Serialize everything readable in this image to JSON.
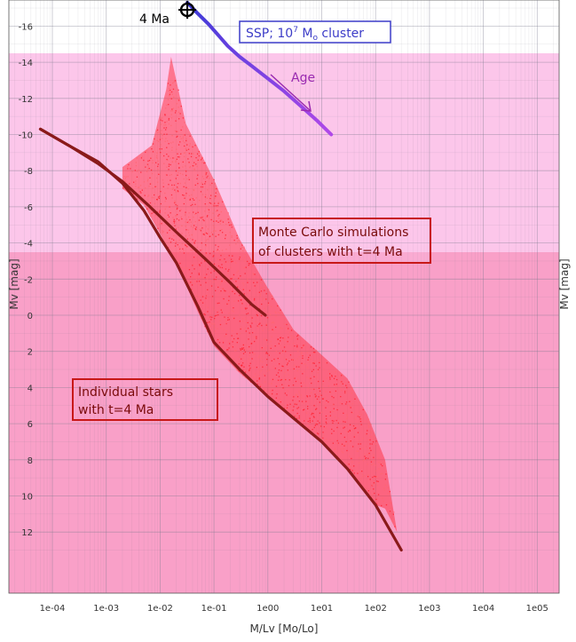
{
  "chart_data": {
    "type": "scatter",
    "x_scale": "log",
    "y_reversed": true,
    "xlabel": "M/Lv [Mo/Lo]",
    "ylabel_left": "Mv [mag]",
    "ylabel_right": "Mv [mag]",
    "xlim": [
      5e-05,
      300000.0
    ],
    "ylim": [
      13.5,
      -17
    ],
    "x_ticks": [
      "1e-04",
      "1e-03",
      "1e-02",
      "1e-01",
      "1e00",
      "1e01",
      "1e02",
      "1e03",
      "1e04",
      "1e05"
    ],
    "y_ticks": [
      "-16",
      "-14",
      "-12",
      "-10",
      "-8",
      "-6",
      "-4",
      "-2",
      "0",
      "2",
      "4",
      "6",
      "8",
      "10",
      "12"
    ],
    "grid": true,
    "annotations": {
      "ssp_point_label": "4 Ma",
      "ssp_box_prefix": "SSP; 10",
      "ssp_box_sup": "7",
      "ssp_box_mid": " M",
      "ssp_box_sub": "o",
      "ssp_box_suffix": " cluster",
      "age_label": "Age",
      "mc_label_line1": "Monte Carlo simulations",
      "mc_label_line2": "of clusters with t=4 Ma",
      "stars_label_line1": "Individual stars",
      "stars_label_line2": "with t=4 Ma"
    },
    "colors": {
      "background_upper": "#fcc6ea",
      "background_lower": "#f9a0c8",
      "cloud": "#ff3344",
      "stars": "#8a1a1a",
      "ssp_track_early": "#3a3ad6",
      "ssp_track_late": "#b048e8",
      "annotation_box": "#c81818",
      "ssp_box": "#3c3cc8",
      "age_arrow": "#9a2ab0"
    },
    "ssp_track": {
      "x": [
        0.032,
        0.05,
        0.08,
        0.12,
        0.18,
        0.3,
        0.5,
        1.0,
        2.0,
        4.0,
        8.0,
        15.0
      ],
      "y": [
        -17.3,
        -16.7,
        -16.1,
        -15.5,
        -14.9,
        -14.3,
        -13.8,
        -13.1,
        -12.4,
        -11.6,
        -10.8,
        -10.0
      ]
    },
    "stars_upper_branch": {
      "x": [
        6e-05,
        0.0002,
        0.0007,
        0.002,
        0.006,
        0.02,
        0.07,
        0.2,
        0.5,
        0.9
      ],
      "y": [
        -10.3,
        -9.4,
        -8.4,
        -7.4,
        -6.1,
        -4.6,
        -3.1,
        -1.8,
        -0.6,
        0.0
      ]
    },
    "stars_lower_branch": {
      "x": [
        6e-05,
        0.0002,
        0.0007,
        0.002,
        0.005,
        0.01,
        0.02,
        0.05,
        0.1,
        0.3,
        1.0,
        3.0,
        10.0,
        30.0,
        100.0,
        300.0
      ],
      "y": [
        -10.3,
        -9.4,
        -8.5,
        -7.3,
        -5.8,
        -4.3,
        -2.9,
        -0.5,
        1.5,
        3.0,
        4.5,
        5.7,
        7.0,
        8.5,
        10.5,
        13.0
      ]
    },
    "mc_cloud_boundary": {
      "x": [
        0.002,
        0.007,
        0.013,
        0.016,
        0.02,
        0.03,
        0.1,
        0.3,
        1.0,
        3.0,
        10.0,
        30.0,
        70.0,
        150.0,
        250.0,
        150.0,
        100.0,
        30.0,
        10.0,
        3.0,
        1.0,
        0.3,
        0.1,
        0.05,
        0.03,
        0.02,
        0.01,
        0.005,
        0.002
      ],
      "y": [
        -8.2,
        -9.4,
        -12.5,
        -14.3,
        -13.0,
        -10.6,
        -7.5,
        -4.2,
        -1.5,
        0.8,
        2.2,
        3.5,
        5.5,
        8.0,
        12.0,
        10.7,
        10.5,
        8.5,
        7.0,
        5.8,
        4.5,
        3.2,
        1.7,
        -0.2,
        -1.7,
        -2.8,
        -4.5,
        -6.1,
        -7.0
      ]
    }
  }
}
